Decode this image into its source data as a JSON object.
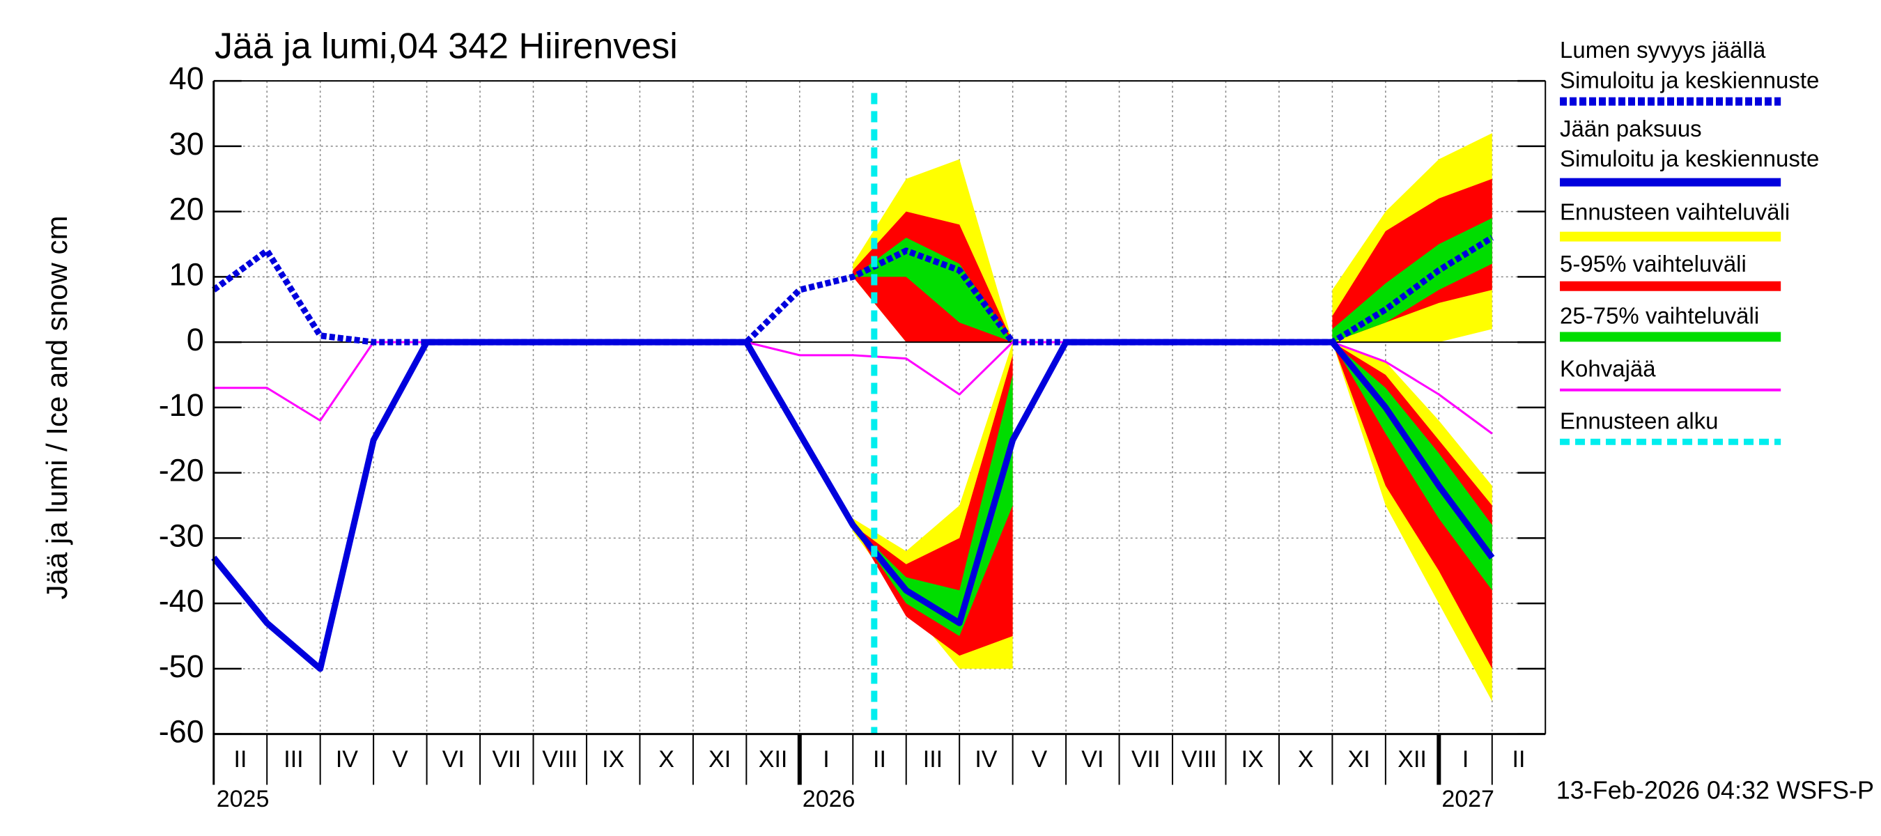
{
  "chart_data": {
    "type": "line",
    "title": "Jää ja lumi,04 342 Hiirenvesi",
    "y_label": "Jää ja lumi / Ice and snow    cm",
    "footer": "13-Feb-2026 04:32 WSFS-P",
    "xlim": [
      "2025-02",
      "2027-03"
    ],
    "ylim": [
      -60,
      40
    ],
    "yticks": [
      -60,
      -50,
      -40,
      -30,
      -20,
      -10,
      0,
      10,
      20,
      30,
      40
    ],
    "grid": true,
    "month_labels": [
      {
        "value": "2025-02",
        "label": "II"
      },
      {
        "value": "2025-03",
        "label": "III"
      },
      {
        "value": "2025-04",
        "label": "IV"
      },
      {
        "value": "2025-05",
        "label": "V"
      },
      {
        "value": "2025-06",
        "label": "VI"
      },
      {
        "value": "2025-07",
        "label": "VII"
      },
      {
        "value": "2025-08",
        "label": "VIII"
      },
      {
        "value": "2025-09",
        "label": "IX"
      },
      {
        "value": "2025-10",
        "label": "X"
      },
      {
        "value": "2025-11",
        "label": "XI"
      },
      {
        "value": "2025-12",
        "label": "XII"
      },
      {
        "value": "2026-01",
        "label": "I"
      },
      {
        "value": "2026-02",
        "label": "II"
      },
      {
        "value": "2026-03",
        "label": "III"
      },
      {
        "value": "2026-04",
        "label": "IV"
      },
      {
        "value": "2026-05",
        "label": "V"
      },
      {
        "value": "2026-06",
        "label": "VI"
      },
      {
        "value": "2026-07",
        "label": "VII"
      },
      {
        "value": "2026-08",
        "label": "VIII"
      },
      {
        "value": "2026-09",
        "label": "IX"
      },
      {
        "value": "2026-10",
        "label": "X"
      },
      {
        "value": "2026-11",
        "label": "XI"
      },
      {
        "value": "2026-12",
        "label": "XII"
      },
      {
        "value": "2027-01",
        "label": "I"
      },
      {
        "value": "2027-02",
        "label": "II"
      }
    ],
    "year_labels": [
      {
        "value": "2025-02",
        "label": "2025"
      },
      {
        "value": "2026-01",
        "label": "2026"
      },
      {
        "value": "2027-01",
        "label": "2027"
      }
    ],
    "x": [
      "2025-02",
      "2025-03",
      "2025-04",
      "2025-05",
      "2025-06",
      "2025-07",
      "2025-08",
      "2025-09",
      "2025-10",
      "2025-11",
      "2025-12",
      "2026-01",
      "2026-02",
      "2026-03",
      "2026-04",
      "2026-05",
      "2026-06",
      "2026-07",
      "2026-08",
      "2026-09",
      "2026-10",
      "2026-11",
      "2026-12",
      "2027-01",
      "2027-02"
    ],
    "series": [
      {
        "name": "Lumen syvyys jäällä",
        "legend_note": "Simuloitu ja keskiennuste",
        "color": "#0000dd",
        "dashed": true,
        "values": [
          8,
          14,
          1,
          0,
          0,
          0,
          0,
          0,
          0,
          0,
          0,
          8,
          10,
          14,
          11,
          0,
          0,
          0,
          0,
          0,
          0,
          0,
          5,
          11,
          16
        ]
      },
      {
        "name": "Jään paksuus",
        "legend_note": "Simuloitu ja keskiennuste",
        "color": "#0000dd",
        "dashed": false,
        "values": [
          -33,
          -43,
          -50,
          -15,
          0,
          0,
          0,
          0,
          0,
          0,
          0,
          -14,
          -28,
          -38,
          -43,
          -15,
          0,
          0,
          0,
          0,
          0,
          0,
          -10,
          -22,
          -33
        ]
      },
      {
        "name": "Kohvajää",
        "color": "#ff00ff",
        "dashed": false,
        "values": [
          -7,
          -7,
          -12,
          0,
          0,
          0,
          0,
          0,
          0,
          0,
          0,
          -2,
          -2,
          -2.5,
          -8,
          0,
          0,
          0,
          0,
          0,
          0,
          0,
          -3,
          -8,
          -14
        ]
      }
    ],
    "bands": [
      {
        "name": "Ennusteen vaihteluväli",
        "color": "#ffff00",
        "snow_low": [
          null,
          null,
          null,
          null,
          null,
          null,
          null,
          null,
          null,
          null,
          null,
          null,
          10,
          0,
          0,
          0,
          null,
          null,
          null,
          null,
          null,
          0,
          0,
          0,
          2
        ],
        "snow_high": [
          null,
          null,
          null,
          null,
          null,
          null,
          null,
          null,
          null,
          null,
          null,
          null,
          12,
          25,
          28,
          0,
          null,
          null,
          null,
          null,
          null,
          8,
          20,
          28,
          32
        ],
        "ice_low": [
          null,
          null,
          null,
          null,
          null,
          null,
          null,
          null,
          null,
          null,
          null,
          null,
          -29,
          -40,
          -50,
          -50,
          null,
          null,
          null,
          null,
          null,
          0,
          -25,
          -40,
          -55
        ],
        "ice_high": [
          null,
          null,
          null,
          null,
          null,
          null,
          null,
          null,
          null,
          null,
          null,
          null,
          -27,
          -32,
          -25,
          0,
          null,
          null,
          null,
          null,
          null,
          0,
          -3,
          -12,
          -22
        ]
      },
      {
        "name": "5-95% vaihteluväli",
        "color": "#ff0000",
        "snow_low": [
          null,
          null,
          null,
          null,
          null,
          null,
          null,
          null,
          null,
          null,
          null,
          null,
          10,
          0,
          0,
          0,
          null,
          null,
          null,
          null,
          null,
          0,
          3,
          6,
          8
        ],
        "snow_high": [
          null,
          null,
          null,
          null,
          null,
          null,
          null,
          null,
          null,
          null,
          null,
          null,
          11,
          20,
          18,
          0,
          null,
          null,
          null,
          null,
          null,
          4,
          17,
          22,
          25
        ],
        "ice_low": [
          null,
          null,
          null,
          null,
          null,
          null,
          null,
          null,
          null,
          null,
          null,
          null,
          -28,
          -42,
          -48,
          -45,
          null,
          null,
          null,
          null,
          null,
          0,
          -22,
          -35,
          -50
        ],
        "ice_high": [
          null,
          null,
          null,
          null,
          null,
          null,
          null,
          null,
          null,
          null,
          null,
          null,
          -28,
          -34,
          -30,
          -2,
          null,
          null,
          null,
          null,
          null,
          0,
          -5,
          -15,
          -25
        ]
      },
      {
        "name": "25-75% vaihteluväli",
        "color": "#00dd00",
        "snow_low": [
          null,
          null,
          null,
          null,
          null,
          null,
          null,
          null,
          null,
          null,
          null,
          null,
          10,
          10,
          3,
          0,
          null,
          null,
          null,
          null,
          null,
          0,
          3,
          8,
          12
        ],
        "snow_high": [
          null,
          null,
          null,
          null,
          null,
          null,
          null,
          null,
          null,
          null,
          null,
          null,
          10,
          16,
          12,
          0,
          null,
          null,
          null,
          null,
          null,
          2,
          9,
          15,
          19
        ],
        "ice_low": [
          null,
          null,
          null,
          null,
          null,
          null,
          null,
          null,
          null,
          null,
          null,
          null,
          -28,
          -40,
          -45,
          -25,
          null,
          null,
          null,
          null,
          null,
          0,
          -14,
          -27,
          -38
        ],
        "ice_high": [
          null,
          null,
          null,
          null,
          null,
          null,
          null,
          null,
          null,
          null,
          null,
          null,
          -28,
          -36,
          -38,
          -5,
          null,
          null,
          null,
          null,
          null,
          0,
          -7,
          -17,
          -28
        ]
      }
    ],
    "forecast_start": {
      "name": "Ennusteen alku",
      "x": "2026-02-13",
      "color": "#00eeee"
    }
  }
}
